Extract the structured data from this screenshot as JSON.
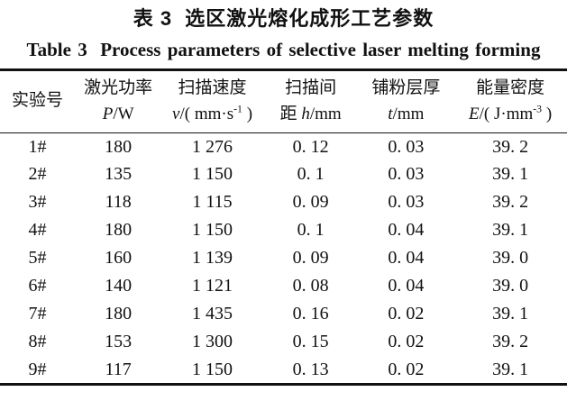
{
  "titles": {
    "zh": "表 3  选区激光熔化成形工艺参数",
    "en": "Table 3  Process parameters of selective laser melting forming"
  },
  "table": {
    "columns": [
      {
        "line1": "实验号",
        "prefix": "",
        "var": "",
        "unit_pre": "",
        "unit_sup": "",
        "unit_post": ""
      },
      {
        "line1": "激光功率",
        "prefix": "",
        "var": "P",
        "unit_pre": "/W",
        "unit_sup": "",
        "unit_post": ""
      },
      {
        "line1": "扫描速度",
        "prefix": "",
        "var": "v",
        "unit_pre": "/( mm·s",
        "unit_sup": "-1",
        "unit_post": " )"
      },
      {
        "line1": "扫描间",
        "prefix": "距 ",
        "var": "h",
        "unit_pre": "/mm",
        "unit_sup": "",
        "unit_post": ""
      },
      {
        "line1": "铺粉层厚",
        "prefix": "",
        "var": "t",
        "unit_pre": "/mm",
        "unit_sup": "",
        "unit_post": ""
      },
      {
        "line1": "能量密度",
        "prefix": "",
        "var": "E",
        "unit_pre": "/( J·mm",
        "unit_sup": "-3",
        "unit_post": " )"
      }
    ],
    "rows": [
      {
        "id": "1#",
        "power": "180",
        "speed": "1 276",
        "hatch": "0. 12",
        "layer": "0. 03",
        "energy": "39. 2"
      },
      {
        "id": "2#",
        "power": "135",
        "speed": "1 150",
        "hatch": "0. 1",
        "layer": "0. 03",
        "energy": "39. 1"
      },
      {
        "id": "3#",
        "power": "118",
        "speed": "1 115",
        "hatch": "0. 09",
        "layer": "0. 03",
        "energy": "39. 2"
      },
      {
        "id": "4#",
        "power": "180",
        "speed": "1 150",
        "hatch": "0. 1",
        "layer": "0. 04",
        "energy": "39. 1"
      },
      {
        "id": "5#",
        "power": "160",
        "speed": "1 139",
        "hatch": "0. 09",
        "layer": "0. 04",
        "energy": "39. 0"
      },
      {
        "id": "6#",
        "power": "140",
        "speed": "1 121",
        "hatch": "0. 08",
        "layer": "0. 04",
        "energy": "39. 0"
      },
      {
        "id": "7#",
        "power": "180",
        "speed": "1 435",
        "hatch": "0. 16",
        "layer": "0. 02",
        "energy": "39. 1"
      },
      {
        "id": "8#",
        "power": "153",
        "speed": "1 300",
        "hatch": "0. 15",
        "layer": "0. 02",
        "energy": "39. 2"
      },
      {
        "id": "9#",
        "power": "117",
        "speed": "1 150",
        "hatch": "0. 13",
        "layer": "0. 02",
        "energy": "39. 1"
      }
    ]
  },
  "chart_data": {
    "type": "table",
    "title": "表 3 选区激光熔化成形工艺参数 / Table 3 Process parameters of selective laser melting forming",
    "columns": [
      "实验号",
      "激光功率 P/W",
      "扫描速度 v/(mm·s⁻¹)",
      "扫描间距 h/mm",
      "铺粉层厚 t/mm",
      "能量密度 E/(J·mm⁻³)"
    ],
    "rows": [
      [
        "1#",
        180,
        1276,
        0.12,
        0.03,
        39.2
      ],
      [
        "2#",
        135,
        1150,
        0.1,
        0.03,
        39.1
      ],
      [
        "3#",
        118,
        1115,
        0.09,
        0.03,
        39.2
      ],
      [
        "4#",
        180,
        1150,
        0.1,
        0.04,
        39.1
      ],
      [
        "5#",
        160,
        1139,
        0.09,
        0.04,
        39.0
      ],
      [
        "6#",
        140,
        1121,
        0.08,
        0.04,
        39.0
      ],
      [
        "7#",
        180,
        1435,
        0.16,
        0.02,
        39.1
      ],
      [
        "8#",
        153,
        1300,
        0.15,
        0.02,
        39.2
      ],
      [
        "9#",
        117,
        1150,
        0.13,
        0.02,
        39.1
      ]
    ]
  },
  "colors": {
    "text": "#111111",
    "rule": "#111111",
    "background": "#ffffff"
  }
}
